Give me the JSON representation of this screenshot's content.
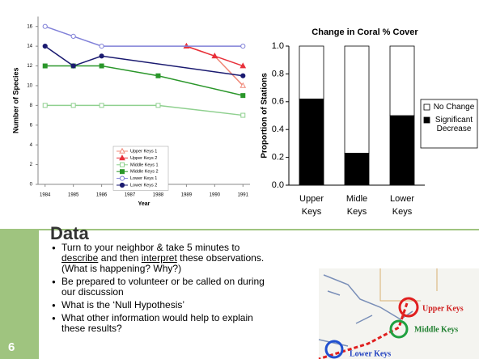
{
  "chart_data": [
    {
      "type": "line",
      "ylabel": "Number of Species",
      "xlabel": "Year",
      "xlim": [
        1983.75,
        1991.25
      ],
      "xticks": [
        1984,
        1985,
        1986,
        1987,
        1988,
        1989,
        1990,
        1991
      ],
      "ylim": [
        0,
        17
      ],
      "yticks": [
        0,
        2,
        4,
        6,
        8,
        10,
        12,
        14,
        16
      ],
      "series": [
        {
          "name": "Upper Keys 1",
          "color": "#f08a7a",
          "marker": "triangle",
          "filled": false,
          "x": [
            1989,
            1990,
            1991
          ],
          "values": [
            14,
            13,
            10
          ]
        },
        {
          "name": "Upper Keys 2",
          "color": "#e8303a",
          "marker": "triangle",
          "filled": true,
          "x": [
            1989,
            1990,
            1991
          ],
          "values": [
            14,
            13,
            12
          ]
        },
        {
          "name": "Middle Keys 1",
          "color": "#8fd08f",
          "marker": "square",
          "filled": false,
          "x": [
            1984,
            1985,
            1986,
            1988,
            1991
          ],
          "values": [
            8,
            8,
            8,
            8,
            7
          ]
        },
        {
          "name": "Middle Keys 2",
          "color": "#2a962a",
          "marker": "square",
          "filled": true,
          "x": [
            1984,
            1985,
            1986,
            1988,
            1991
          ],
          "values": [
            12,
            12,
            12,
            11,
            9
          ]
        },
        {
          "name": "Lower Keys 1",
          "color": "#8080d8",
          "marker": "circle",
          "filled": false,
          "x": [
            1984,
            1985,
            1986,
            1991
          ],
          "values": [
            16,
            15,
            14,
            14
          ]
        },
        {
          "name": "Lower Keys 2",
          "color": "#1a1a70",
          "marker": "circle",
          "filled": true,
          "x": [
            1984,
            1985,
            1986,
            1991
          ],
          "values": [
            14,
            12,
            13,
            11
          ]
        }
      ]
    },
    {
      "type": "stacked_bar",
      "title": "Change in Coral % Cover",
      "ylabel": "Proportion of Stations",
      "categories": [
        "Upper Keys",
        "Midle Keys",
        "Lower Keys"
      ],
      "ylim": [
        0,
        1
      ],
      "yticks": [
        {
          "value": 0,
          "label": "0.0"
        },
        0.2,
        0.4,
        0.6,
        0.8,
        {
          "value": 1,
          "label": "1.0"
        }
      ],
      "series": [
        {
          "name": "No Change",
          "color": "#ffffff",
          "values": [
            0.38,
            0.77,
            0.5
          ]
        },
        {
          "name": "Significant Decrease",
          "color": "#000000",
          "values": [
            0.62,
            0.23,
            0.5
          ]
        }
      ]
    }
  ],
  "heading": "Data",
  "bullets": [
    [
      "Turn to your neighbor & take 5 minutes to ",
      "describe",
      " and then ",
      "interpret",
      " these observations. (What is happening? Why?)"
    ],
    [
      "Be prepared to volunteer or be called on during our discussion"
    ],
    [
      "What is the ‘Null Hypothesis’"
    ],
    [
      "What other information would help to explain these results?"
    ]
  ],
  "page_number": "6",
  "map_labels": [
    "Upper Keys",
    "Middle Keys",
    "Lower Keys"
  ]
}
